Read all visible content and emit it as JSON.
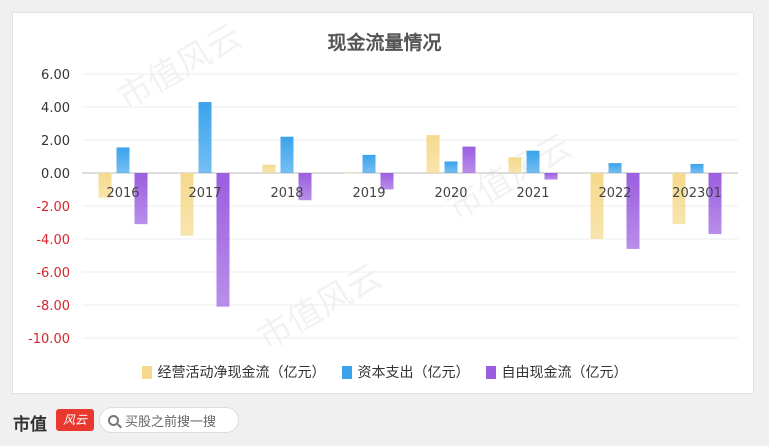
{
  "chart_data": {
    "type": "bar",
    "title": "现金流量情况",
    "categories": [
      "2016",
      "2017",
      "2018",
      "2019",
      "2020",
      "2021",
      "2022",
      "202301"
    ],
    "ylim": [
      -10,
      6
    ],
    "yticks": [
      "6.00",
      "4.00",
      "2.00",
      "0.00",
      "-2.00",
      "-4.00",
      "-6.00",
      "-8.00",
      "-10.00"
    ],
    "grid": true,
    "legend_position": "bottom",
    "series": [
      {
        "name": "经营活动净现金流（亿元）",
        "values": [
          -1.5,
          -3.8,
          0.5,
          0.0,
          2.3,
          0.95,
          -4.0,
          -3.1
        ],
        "color": "#f5d98c"
      },
      {
        "name": "资本支出（亿元）",
        "values": [
          1.55,
          4.3,
          2.2,
          1.1,
          0.7,
          1.35,
          0.6,
          0.55
        ],
        "color": "#3aa3ec"
      },
      {
        "name": "自由现金流（亿元）",
        "values": [
          -3.1,
          -8.1,
          -1.65,
          -1.0,
          1.6,
          -0.4,
          -4.6,
          -3.7
        ],
        "color": "#9b5ee0"
      }
    ]
  },
  "footer": {
    "brand": "市值",
    "brand_mark": "风云",
    "search_placeholder": "买股之前搜一搜"
  },
  "watermark": "市值风云"
}
